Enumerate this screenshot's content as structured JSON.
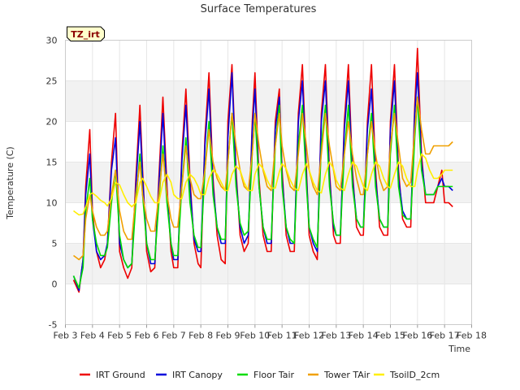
{
  "chart_data": {
    "type": "line",
    "title": "Surface Temperatures",
    "xlabel": "Time",
    "ylabel": "Temperature (C)",
    "tag": "TZ_irt",
    "xlim": [
      3,
      18
    ],
    "ylim": [
      -5,
      30
    ],
    "x_ticks": [
      3,
      4,
      5,
      6,
      7,
      8,
      9,
      10,
      11,
      12,
      13,
      14,
      15,
      16,
      17,
      18
    ],
    "x_tick_labels": [
      "Feb 3",
      "Feb 4",
      "Feb 5",
      "Feb 6",
      "Feb 7",
      "Feb 8",
      "Feb 9",
      "Feb 10",
      "Feb 11",
      "Feb 12",
      "Feb 13",
      "Feb 14",
      "Feb 15",
      "Feb 16",
      "Feb 17",
      "Feb 18"
    ],
    "y_ticks": [
      -5,
      0,
      5,
      10,
      15,
      20,
      25,
      30
    ],
    "y_tick_labels": [
      "-5",
      "0",
      "5",
      "10",
      "15",
      "20",
      "25",
      "30"
    ],
    "grid": true,
    "legend_position": "bottom",
    "series": [
      {
        "name": "IRT Ground",
        "color": "#ee0000",
        "x": [
          3.3,
          3.5,
          3.65,
          3.75,
          3.9,
          4.0,
          4.15,
          4.3,
          4.45,
          4.55,
          4.7,
          4.85,
          5.0,
          5.15,
          5.3,
          5.45,
          5.6,
          5.75,
          5.85,
          6.0,
          6.15,
          6.3,
          6.45,
          6.6,
          6.75,
          6.9,
          7.0,
          7.15,
          7.3,
          7.45,
          7.6,
          7.75,
          7.9,
          8.0,
          8.15,
          8.3,
          8.45,
          8.6,
          8.75,
          8.9,
          9.0,
          9.15,
          9.3,
          9.45,
          9.6,
          9.75,
          9.9,
          10.0,
          10.15,
          10.3,
          10.45,
          10.6,
          10.75,
          10.9,
          11.0,
          11.15,
          11.3,
          11.45,
          11.6,
          11.75,
          11.9,
          12.0,
          12.15,
          12.3,
          12.45,
          12.6,
          12.75,
          12.9,
          13.0,
          13.15,
          13.3,
          13.45,
          13.6,
          13.75,
          13.9,
          14.0,
          14.15,
          14.3,
          14.45,
          14.6,
          14.75,
          14.9,
          15.0,
          15.15,
          15.3,
          15.45,
          15.6,
          15.75,
          15.9,
          16.0,
          16.15,
          16.3,
          16.45,
          16.6,
          16.75,
          16.9,
          17.0,
          17.15,
          17.3
        ],
        "y": [
          0.5,
          -1,
          3,
          12,
          19,
          9,
          4,
          2,
          3,
          5,
          15,
          21,
          4,
          2,
          0.7,
          2,
          13,
          22,
          14,
          4,
          1.5,
          2,
          13,
          23,
          12,
          4,
          2,
          2,
          16,
          24,
          13,
          5,
          2.5,
          2,
          18,
          26,
          13,
          6,
          3,
          2.5,
          20,
          27,
          14,
          6,
          4,
          5,
          20,
          26,
          13,
          6,
          4,
          4,
          20,
          24,
          14,
          6,
          4,
          4,
          21,
          27,
          14,
          6,
          4,
          3,
          21,
          27,
          14,
          6,
          5,
          5,
          20,
          27,
          14,
          7,
          6,
          6,
          20,
          27,
          14,
          7,
          6,
          6,
          20,
          27,
          14,
          8,
          7,
          7,
          22,
          29,
          16,
          10,
          10,
          10,
          12,
          14,
          10,
          10,
          9.5
        ]
      },
      {
        "name": "IRT Canopy",
        "color": "#0000dd",
        "x": [
          3.3,
          3.5,
          3.65,
          3.75,
          3.9,
          4.0,
          4.15,
          4.3,
          4.45,
          4.55,
          4.7,
          4.85,
          5.0,
          5.15,
          5.3,
          5.45,
          5.6,
          5.75,
          5.85,
          6.0,
          6.15,
          6.3,
          6.45,
          6.6,
          6.75,
          6.9,
          7.0,
          7.15,
          7.3,
          7.45,
          7.6,
          7.75,
          7.9,
          8.0,
          8.15,
          8.3,
          8.45,
          8.6,
          8.75,
          8.9,
          9.0,
          9.15,
          9.3,
          9.45,
          9.6,
          9.75,
          9.9,
          10.0,
          10.15,
          10.3,
          10.45,
          10.6,
          10.75,
          10.9,
          11.0,
          11.15,
          11.3,
          11.45,
          11.6,
          11.75,
          11.9,
          12.0,
          12.15,
          12.3,
          12.45,
          12.6,
          12.75,
          12.9,
          13.0,
          13.15,
          13.3,
          13.45,
          13.6,
          13.75,
          13.9,
          14.0,
          14.15,
          14.3,
          14.45,
          14.6,
          14.75,
          14.9,
          15.0,
          15.15,
          15.3,
          15.45,
          15.6,
          15.75,
          15.9,
          16.0,
          16.15,
          16.3,
          16.45,
          16.6,
          16.75,
          16.9,
          17.0,
          17.15,
          17.3
        ],
        "y": [
          1,
          -0.8,
          3,
          11,
          16,
          8,
          4,
          3,
          3.5,
          5,
          14,
          18,
          5,
          3,
          2,
          2.5,
          12,
          20,
          13,
          5,
          2.5,
          2.5,
          12,
          21,
          11,
          5,
          3,
          3,
          15,
          22,
          12,
          5.5,
          4,
          4,
          17,
          24,
          12,
          7,
          5,
          5,
          18,
          26,
          13,
          7,
          5,
          6,
          19,
          24,
          12,
          7,
          5,
          5,
          19,
          23,
          13,
          7,
          5,
          5,
          20,
          25,
          13,
          7,
          5,
          4,
          20,
          25,
          13,
          7,
          6,
          6,
          19,
          25,
          13,
          8,
          7,
          7,
          19,
          24,
          13,
          8,
          7,
          7,
          19,
          25,
          13,
          9,
          8,
          8,
          21,
          26,
          15,
          11,
          11,
          11,
          12,
          13,
          12,
          12,
          11.5
        ]
      },
      {
        "name": "Floor Tair",
        "color": "#00dd00",
        "x": [
          3.3,
          3.5,
          3.65,
          3.75,
          3.9,
          4.0,
          4.15,
          4.3,
          4.45,
          4.55,
          4.7,
          4.85,
          5.0,
          5.15,
          5.3,
          5.45,
          5.6,
          5.75,
          5.85,
          6.0,
          6.15,
          6.3,
          6.45,
          6.6,
          6.75,
          6.9,
          7.0,
          7.15,
          7.3,
          7.45,
          7.6,
          7.75,
          7.9,
          8.0,
          8.15,
          8.3,
          8.45,
          8.6,
          8.75,
          8.9,
          9.0,
          9.15,
          9.3,
          9.45,
          9.6,
          9.75,
          9.9,
          10.0,
          10.15,
          10.3,
          10.45,
          10.6,
          10.75,
          10.9,
          11.0,
          11.15,
          11.3,
          11.45,
          11.6,
          11.75,
          11.9,
          12.0,
          12.15,
          12.3,
          12.45,
          12.6,
          12.75,
          12.9,
          13.0,
          13.15,
          13.3,
          13.45,
          13.6,
          13.75,
          13.9,
          14.0,
          14.15,
          14.3,
          14.45,
          14.6,
          14.75,
          14.9,
          15.0,
          15.15,
          15.3,
          15.45,
          15.6,
          15.75,
          15.9,
          16.0,
          16.15,
          16.3,
          16.45,
          16.6,
          16.75,
          16.9,
          17.0,
          17.15,
          17.3
        ],
        "y": [
          1,
          -0.5,
          2,
          9,
          13,
          8,
          5,
          3.5,
          3.5,
          4.5,
          10,
          14,
          6,
          3,
          2,
          2.5,
          10,
          16,
          11,
          5,
          3,
          3,
          10,
          17,
          10,
          5,
          3.5,
          3.5,
          12,
          18,
          10,
          6,
          4.5,
          4.5,
          14,
          20,
          11,
          7,
          5.5,
          5.5,
          15,
          21,
          12,
          7.5,
          6,
          6.5,
          16,
          21,
          12,
          7,
          5.5,
          5.5,
          17,
          22,
          12,
          7,
          5.5,
          5,
          17,
          22,
          12,
          7,
          5.5,
          4.5,
          17,
          22,
          12,
          7.5,
          6,
          6,
          16,
          22,
          12,
          8,
          7,
          7,
          16,
          21,
          12,
          8,
          7,
          7,
          16,
          22,
          12,
          8.5,
          8,
          8,
          18,
          23,
          14,
          11,
          11,
          11,
          12,
          12,
          12,
          12,
          12
        ]
      },
      {
        "name": "Tower TAir",
        "color": "#f0a000",
        "x": [
          3.3,
          3.5,
          3.65,
          3.75,
          3.9,
          4.0,
          4.15,
          4.3,
          4.45,
          4.55,
          4.7,
          4.85,
          5.0,
          5.15,
          5.3,
          5.45,
          5.6,
          5.75,
          5.85,
          6.0,
          6.15,
          6.3,
          6.45,
          6.6,
          6.75,
          6.9,
          7.0,
          7.15,
          7.3,
          7.45,
          7.6,
          7.75,
          7.9,
          8.0,
          8.15,
          8.3,
          8.45,
          8.6,
          8.75,
          8.9,
          9.0,
          9.15,
          9.3,
          9.45,
          9.6,
          9.75,
          9.9,
          10.0,
          10.15,
          10.3,
          10.45,
          10.6,
          10.75,
          10.9,
          11.0,
          11.15,
          11.3,
          11.45,
          11.6,
          11.75,
          11.9,
          12.0,
          12.15,
          12.3,
          12.45,
          12.6,
          12.75,
          12.9,
          13.0,
          13.15,
          13.3,
          13.45,
          13.6,
          13.75,
          13.9,
          14.0,
          14.15,
          14.3,
          14.45,
          14.6,
          14.75,
          14.9,
          15.0,
          15.15,
          15.3,
          15.45,
          15.6,
          15.75,
          15.9,
          16.0,
          16.15,
          16.3,
          16.45,
          16.6,
          16.75,
          16.9,
          17.0,
          17.15,
          17.3
        ],
        "y": [
          3.5,
          3,
          3.5,
          8,
          11,
          9,
          7,
          6,
          6,
          6.5,
          11,
          14,
          9,
          6.5,
          5.5,
          5.5,
          11,
          15,
          11,
          8,
          6.5,
          6.5,
          11,
          16,
          11,
          8,
          7,
          7,
          12,
          17,
          13,
          11,
          10.5,
          10.5,
          14,
          19,
          15,
          13,
          12,
          11.5,
          15,
          21,
          17,
          14,
          12,
          11.5,
          16,
          21,
          17,
          14,
          12,
          11.5,
          17,
          21,
          17,
          14,
          12,
          11.5,
          16,
          21,
          17,
          14,
          12,
          11,
          16,
          21,
          17,
          14,
          12,
          11.5,
          16,
          20,
          16,
          13,
          11,
          11,
          16,
          20,
          16,
          13,
          11.5,
          12,
          17,
          21,
          17,
          13,
          12,
          12.5,
          19,
          23,
          19,
          16,
          16,
          17,
          17,
          17,
          17,
          17,
          17.5
        ]
      },
      {
        "name": "TsoilD_2cm",
        "color": "#ffee00",
        "x": [
          3.3,
          3.5,
          3.65,
          3.75,
          3.9,
          4.0,
          4.15,
          4.3,
          4.45,
          4.55,
          4.7,
          4.85,
          5.0,
          5.15,
          5.3,
          5.45,
          5.6,
          5.75,
          5.85,
          6.0,
          6.15,
          6.3,
          6.45,
          6.6,
          6.75,
          6.9,
          7.0,
          7.15,
          7.3,
          7.45,
          7.6,
          7.75,
          7.9,
          8.0,
          8.15,
          8.3,
          8.45,
          8.6,
          8.75,
          8.9,
          9.0,
          9.15,
          9.3,
          9.45,
          9.6,
          9.75,
          9.9,
          10.0,
          10.15,
          10.3,
          10.45,
          10.6,
          10.75,
          10.9,
          11.0,
          11.15,
          11.3,
          11.45,
          11.6,
          11.75,
          11.9,
          12.0,
          12.15,
          12.3,
          12.45,
          12.6,
          12.75,
          12.9,
          13.0,
          13.15,
          13.3,
          13.45,
          13.6,
          13.75,
          13.9,
          14.0,
          14.15,
          14.3,
          14.45,
          14.6,
          14.75,
          14.9,
          15.0,
          15.15,
          15.3,
          15.45,
          15.6,
          15.75,
          15.9,
          16.0,
          16.15,
          16.3,
          16.45,
          16.6,
          16.75,
          16.9,
          17.0,
          17.15,
          17.3
        ],
        "y": [
          9,
          8.5,
          8.6,
          9.5,
          11,
          11.2,
          10.8,
          10.3,
          10,
          9.6,
          10.5,
          12.5,
          12.2,
          11,
          10,
          9.5,
          10,
          12.5,
          13,
          12,
          10.8,
          10,
          10,
          12.5,
          13.5,
          12.5,
          11,
          10.5,
          10.5,
          12.5,
          13.5,
          13,
          12,
          11,
          11,
          13,
          14,
          13.5,
          12.5,
          11.5,
          11.5,
          13.5,
          14.5,
          14,
          12.5,
          11.5,
          11.5,
          13.5,
          14.8,
          14.2,
          12.8,
          11.8,
          11.8,
          13.8,
          14.8,
          14.2,
          12.8,
          11.8,
          11.5,
          13.5,
          14.8,
          14,
          12.5,
          11.5,
          11.2,
          13.5,
          15,
          14.2,
          12.8,
          11.8,
          11.5,
          13.5,
          15,
          14.5,
          13,
          12,
          11.5,
          13.5,
          15,
          14.5,
          13,
          12,
          11.8,
          13.5,
          15,
          14.5,
          13,
          12,
          12,
          14,
          16,
          15.5,
          14,
          13,
          13,
          13.5,
          14,
          14,
          14
        ]
      }
    ]
  }
}
